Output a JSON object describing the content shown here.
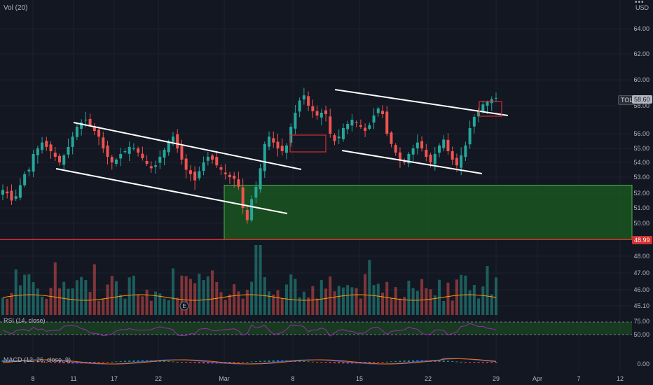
{
  "labels": {
    "volume": "Vol (20)",
    "rsi": "RSI (14, close)",
    "macd": "MACD (12, 26, close, 9)",
    "currency": "USD",
    "ticker_tag": "TOL",
    "last_price": "58.60",
    "support_price": "48.99",
    "earnings_marker": "E",
    "menu_dots": "•••"
  },
  "colors": {
    "up": "#26a69a",
    "down": "#ef5350",
    "zone": "#1b5e20",
    "zone_border": "#4caf50",
    "support": "#d32f2f",
    "rsi": "#9c27b0",
    "macd": "#2962ff",
    "signal": "#ff6d00",
    "volume_ma": "#ff9800",
    "trendline": "#ffffff"
  },
  "chart_data": {
    "type": "candlestick",
    "price_ticks": [
      "64.00",
      "62.00",
      "60.00",
      "58.00",
      "56.00",
      "55.00",
      "54.00",
      "53.00",
      "52.00",
      "51.00",
      "50.00",
      "49.00",
      "48.00",
      "47.00",
      "46.00",
      "45.10"
    ],
    "rsi_ticks": [
      "75.00",
      "50.00"
    ],
    "macd_ticks": [
      "0.00"
    ],
    "x_ticks": [
      "8",
      "11",
      "17",
      "22",
      "Mar",
      "8",
      "15",
      "22",
      "29",
      "Apr",
      "7",
      "12"
    ],
    "last_price": 58.6,
    "support_level": 48.99,
    "demand_zone": [
      49.0,
      52.5
    ],
    "close_series": [
      52.2,
      52.0,
      51.5,
      51.8,
      52.5,
      53.2,
      53.5,
      54.6,
      55.0,
      55.4,
      55.1,
      54.8,
      54.4,
      54.0,
      54.5,
      55.1,
      55.8,
      56.5,
      56.8,
      57.0,
      56.6,
      56.2,
      55.8,
      55.0,
      54.4,
      54.0,
      54.2,
      54.6,
      54.8,
      55.1,
      55.0,
      54.7,
      54.3,
      53.9,
      53.6,
      53.8,
      54.4,
      54.9,
      55.4,
      55.8,
      55.0,
      54.2,
      53.5,
      53.2,
      52.8,
      53.4,
      54.0,
      54.4,
      54.2,
      53.8,
      53.5,
      53.2,
      53.0,
      52.9,
      52.4,
      51.0,
      50.2,
      51.6,
      52.4,
      53.6,
      55.3,
      55.8,
      55.4,
      55.0,
      54.8,
      55.2,
      56.5,
      57.5,
      58.4,
      58.8,
      58.0,
      57.6,
      57.3,
      57.5,
      57.4,
      56.0,
      55.5,
      55.8,
      56.4,
      56.7,
      57.0,
      56.8,
      56.5,
      56.2,
      56.6,
      57.3,
      57.8,
      57.4,
      56.0,
      55.3,
      54.7,
      54.2,
      54.0,
      54.6,
      55.0,
      55.4,
      55.0,
      54.4,
      54.0,
      54.6,
      55.2,
      55.6,
      54.8,
      54.2,
      53.8,
      54.5,
      55.2,
      56.4,
      57.2,
      57.6,
      58.1,
      58.3,
      58.5,
      58.6
    ],
    "annotations": [
      "descending channel (Feb)",
      "descending channel (Mar)",
      "breakout box",
      "breakout box",
      "demand zone",
      "support line 48.99"
    ]
  }
}
